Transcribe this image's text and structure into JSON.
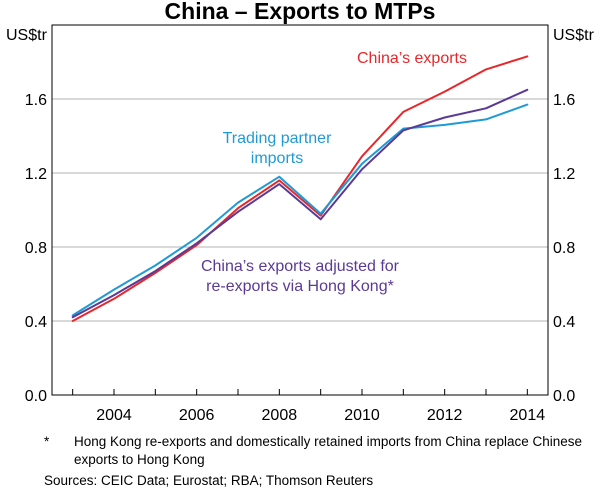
{
  "chart_data": {
    "type": "line",
    "title": "China – Exports to MTPs",
    "ylabel_left": "US$tr",
    "ylabel_right": "US$tr",
    "xlabel": "",
    "xlim": [
      2002.5,
      2014.5
    ],
    "ylim": [
      0.0,
      2.0
    ],
    "x_ticks": [
      "2004",
      "2006",
      "2008",
      "2010",
      "2012",
      "2014"
    ],
    "y_ticks": [
      "0.0",
      "0.4",
      "0.8",
      "1.2",
      "1.6"
    ],
    "grid": "horizontal",
    "x": [
      2003,
      2004,
      2005,
      2006,
      2007,
      2008,
      2009,
      2010,
      2011,
      2012,
      2013,
      2014
    ],
    "series": [
      {
        "name": "China’s exports",
        "color": "#e8272b",
        "values": [
          0.4,
          0.52,
          0.66,
          0.81,
          1.01,
          1.16,
          0.97,
          1.29,
          1.53,
          1.64,
          1.76,
          1.83
        ]
      },
      {
        "name": "Trading partner imports",
        "color": "#1f9ad6",
        "values": [
          0.43,
          0.57,
          0.7,
          0.85,
          1.04,
          1.18,
          0.98,
          1.25,
          1.44,
          1.46,
          1.49,
          1.57
        ]
      },
      {
        "name": "China’s exports adjusted for re-exports via Hong Kong*",
        "color": "#5b3a96",
        "values": [
          0.42,
          0.54,
          0.67,
          0.82,
          0.99,
          1.14,
          0.95,
          1.22,
          1.43,
          1.5,
          1.55,
          1.65
        ]
      }
    ],
    "annotations": {
      "red": "China’s exports",
      "blue_line1": "Trading partner",
      "blue_line2": "imports",
      "purple_line1": "China’s exports adjusted for",
      "purple_line2": "re-exports via Hong Kong*"
    }
  },
  "footnote": {
    "marker": "*",
    "text": "Hong Kong re-exports and domestically retained imports from China replace Chinese exports to Hong Kong"
  },
  "sources": "Sources:  CEIC Data; Eurostat; RBA; Thomson Reuters"
}
